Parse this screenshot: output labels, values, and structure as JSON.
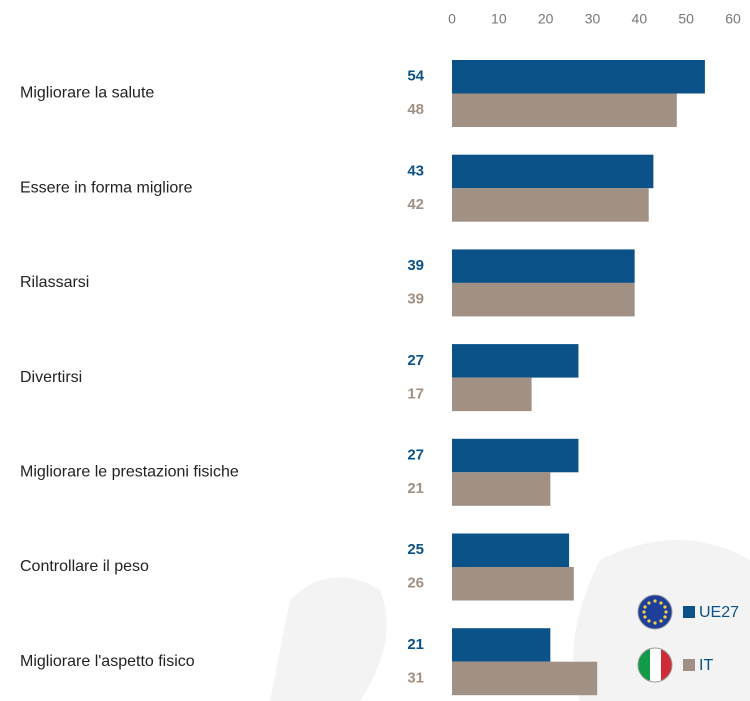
{
  "chart_data": {
    "type": "bar",
    "orientation": "horizontal",
    "categories": [
      "Migliorare la salute",
      "Essere in forma migliore",
      "Rilassarsi",
      "Divertirsi",
      "Migliorare le prestazioni fisiche",
      "Controllare il peso",
      "Migliorare l'aspetto fisico"
    ],
    "series": [
      {
        "name": "UE27",
        "color": "#0b5289",
        "values": [
          54,
          43,
          39,
          27,
          27,
          25,
          21
        ]
      },
      {
        "name": "IT",
        "color": "#a09184",
        "values": [
          48,
          42,
          39,
          17,
          21,
          26,
          31
        ]
      }
    ],
    "xlim": [
      0,
      60
    ],
    "xticks": [
      0,
      10,
      20,
      30,
      40,
      50,
      60
    ],
    "grid": false
  }
}
